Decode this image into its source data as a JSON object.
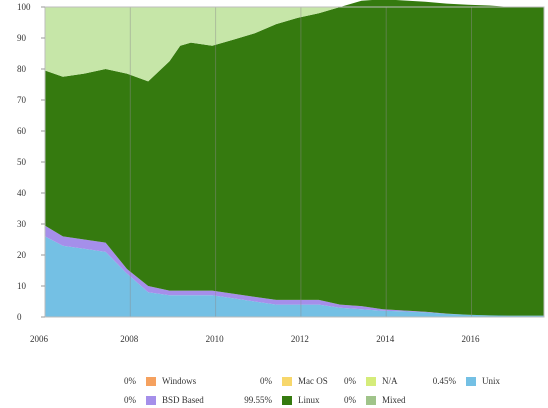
{
  "chart_data": {
    "type": "area",
    "stacked": true,
    "title": "",
    "xlabel": "",
    "ylabel": "",
    "xlim": [
      2006,
      2017.7
    ],
    "ylim": [
      0,
      100
    ],
    "x_ticks": [
      "2006",
      "2008",
      "2010",
      "2012",
      "2014",
      "2016"
    ],
    "y_ticks": [
      "0",
      "10",
      "20",
      "30",
      "40",
      "50",
      "60",
      "70",
      "80",
      "90",
      "100"
    ],
    "grid": true,
    "x": [
      2006.0,
      2006.42,
      2006.92,
      2007.42,
      2007.92,
      2008.42,
      2008.92,
      2009.17,
      2009.42,
      2009.92,
      2010.42,
      2010.92,
      2011.42,
      2011.92,
      2012.42,
      2012.92,
      2013.42,
      2013.92,
      2014.42,
      2014.92,
      2015.42,
      2015.92,
      2016.42,
      2016.92,
      2017.42,
      2017.7
    ],
    "series": [
      {
        "name": "Unix",
        "color": "#74c0e4",
        "values": [
          26,
          23,
          22,
          21,
          14,
          8,
          7,
          7,
          7,
          7,
          6,
          5,
          4,
          4,
          4,
          3,
          2.5,
          2,
          1.8,
          1.5,
          1,
          0.7,
          0.5,
          0.45,
          0.45,
          0.45
        ]
      },
      {
        "name": "BSD Based",
        "color": "#a58fea",
        "values": [
          3.5,
          3,
          3,
          3,
          1.5,
          2,
          1.5,
          1.5,
          1.5,
          1.5,
          1.5,
          1.5,
          1.5,
          1.5,
          1.5,
          1,
          1,
          0.5,
          0.3,
          0.2,
          0.1,
          0,
          0,
          0,
          0,
          0
        ]
      },
      {
        "name": "Linux",
        "color": "#357a0f",
        "values": [
          50,
          51.5,
          53.5,
          56,
          63,
          66,
          74,
          79,
          80,
          79,
          82,
          85,
          89,
          91,
          92.5,
          96,
          98.5,
          100,
          100,
          100,
          100,
          100,
          100,
          99.55,
          99.55,
          99.55
        ]
      },
      {
        "name": "N/A",
        "color": "#c6e6a8",
        "values": [
          20.5,
          22.5,
          21.5,
          20,
          21.5,
          24,
          17.5,
          12.5,
          11.5,
          12.5,
          10.5,
          8.5,
          5.5,
          3.5,
          2,
          0,
          0,
          0,
          0,
          0,
          0,
          0,
          0,
          0,
          0,
          0
        ]
      }
    ],
    "legend": {
      "placement": "bottom",
      "items": [
        {
          "name": "Windows",
          "percent": "0%",
          "color": "#f5a15f"
        },
        {
          "name": "Mac OS",
          "percent": "0%",
          "color": "#f7d76b"
        },
        {
          "name": "N/A",
          "percent": "0%",
          "color": "#d5ec7a"
        },
        {
          "name": "Unix",
          "percent": "0.45%",
          "color": "#74c0e4"
        },
        {
          "name": "BSD Based",
          "percent": "0%",
          "color": "#a58fea"
        },
        {
          "name": "Linux",
          "percent": "99.55%",
          "color": "#357a0f"
        },
        {
          "name": "Mixed",
          "percent": "0%",
          "color": "#a0c48a"
        }
      ]
    }
  }
}
